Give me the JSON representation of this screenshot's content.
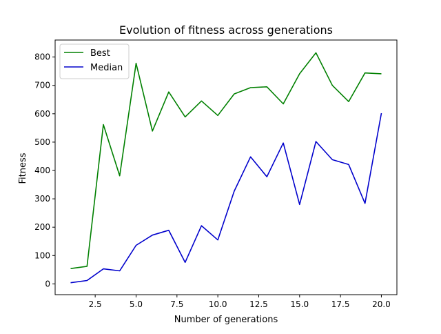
{
  "chart_data": {
    "type": "line",
    "title": "Evolution of fitness across generations",
    "xlabel": "Number of generations",
    "ylabel": "Fitness",
    "xlim": [
      0.05,
      20.95
    ],
    "ylim": [
      -38,
      860
    ],
    "xticks": [
      2.5,
      5.0,
      7.5,
      10.0,
      12.5,
      15.0,
      17.5,
      20.0
    ],
    "xtick_labels": [
      "2.5",
      "5.0",
      "7.5",
      "10.0",
      "12.5",
      "15.0",
      "17.5",
      "20.0"
    ],
    "yticks": [
      0,
      100,
      200,
      300,
      400,
      500,
      600,
      700,
      800
    ],
    "ytick_labels": [
      "0",
      "100",
      "200",
      "300",
      "400",
      "500",
      "600",
      "700",
      "800"
    ],
    "grid": false,
    "legend_position": "upper-left",
    "x": [
      1,
      2,
      3,
      4,
      5,
      6,
      7,
      8,
      9,
      10,
      11,
      12,
      13,
      14,
      15,
      16,
      17,
      18,
      19,
      20
    ],
    "series": [
      {
        "name": "Best",
        "color": "#008000",
        "values": [
          54,
          62,
          562,
          381,
          778,
          539,
          677,
          589,
          645,
          594,
          670,
          692,
          695,
          635,
          741,
          815,
          700,
          643,
          744,
          741
        ]
      },
      {
        "name": "Median",
        "color": "#0000cc",
        "values": [
          4,
          12,
          53,
          46,
          136,
          172,
          189,
          76,
          205,
          155,
          327,
          448,
          378,
          497,
          280,
          502,
          438,
          421,
          284,
          602
        ]
      }
    ]
  }
}
